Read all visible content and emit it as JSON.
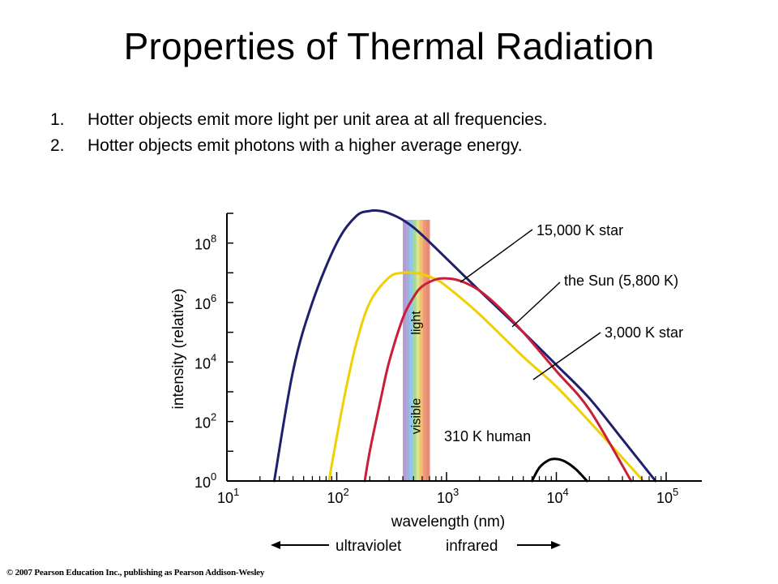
{
  "slide": {
    "title": "Properties of Thermal Radiation",
    "points": [
      {
        "number": "1.",
        "text": "Hotter objects emit more light per unit area at all frequencies."
      },
      {
        "number": "2.",
        "text": "Hotter objects emit photons with a higher average energy."
      }
    ],
    "copyright": "© 2007 Pearson Education Inc., publishing as Pearson Addison-Wesley"
  },
  "chart_data": {
    "type": "line",
    "xlabel": "wavelength (nm)",
    "ylabel": "intensity (relative)",
    "x_scale": "log",
    "y_scale": "log",
    "xlim": [
      10,
      100000
    ],
    "ylim": [
      1,
      1000000000
    ],
    "x_ticks": [
      {
        "value": 10,
        "base": "10",
        "exp": "1"
      },
      {
        "value": 100,
        "base": "10",
        "exp": "2"
      },
      {
        "value": 1000,
        "base": "10",
        "exp": "3"
      },
      {
        "value": 10000,
        "base": "10",
        "exp": "4"
      },
      {
        "value": 100000,
        "base": "10",
        "exp": "5"
      }
    ],
    "y_ticks": [
      {
        "value": 1,
        "base": "10",
        "exp": "0"
      },
      {
        "value": 100,
        "base": "10",
        "exp": "2"
      },
      {
        "value": 10000,
        "base": "10",
        "exp": "4"
      },
      {
        "value": 1000000,
        "base": "10",
        "exp": "6"
      },
      {
        "value": 100000000,
        "base": "10",
        "exp": "8"
      }
    ],
    "visible_band": {
      "label_lines": [
        "visible",
        "light"
      ],
      "range_nm": [
        400,
        700
      ]
    },
    "direction_labels": {
      "left": "ultraviolet",
      "right": "infrared"
    },
    "series": [
      {
        "name": "15,000 K star",
        "color": "#1f1f6e",
        "x": [
          27,
          40,
          60,
          100,
          150,
          200,
          250,
          300,
          400,
          550,
          1000,
          2000,
          5000,
          10000,
          20000,
          40000,
          80000
        ],
        "y": [
          1,
          5000,
          1000000.0,
          100000000.0,
          800000000.0,
          1200000000.0,
          1200000000.0,
          1000000000.0,
          600000000.0,
          250000000.0,
          30000000.0,
          2500000.0,
          100000.0,
          8000,
          600,
          25,
          1
        ]
      },
      {
        "name": "the Sun (5,800 K)",
        "color": "#f0d000",
        "x": [
          85,
          100,
          120,
          150,
          200,
          300,
          400,
          500,
          600,
          800,
          1000,
          2000,
          5000,
          10000,
          20000,
          40000,
          62000
        ],
        "y": [
          1,
          30,
          1000,
          40000,
          1000000.0,
          7000000.0,
          10000000.0,
          10000000.0,
          9000000.0,
          6000000.0,
          3500000.0,
          400000.0,
          15000,
          1500,
          100,
          6,
          1
        ]
      },
      {
        "name": "3,000 K star",
        "color": "#c81e3a",
        "x": [
          180,
          200,
          250,
          300,
          400,
          500,
          600,
          800,
          1000,
          1200,
          1500,
          2000,
          3000,
          5000,
          10000,
          20000,
          48000
        ],
        "y": [
          1,
          10,
          500,
          10000,
          300000.0,
          1500000.0,
          3500000.0,
          6000000.0,
          6500000.0,
          6000000.0,
          4500000.0,
          2500000.0,
          700000.0,
          100000.0,
          5000,
          250,
          1
        ]
      },
      {
        "name": "310 K human",
        "color": "#000000",
        "x": [
          6000,
          7000,
          8500,
          10000,
          12000,
          15000,
          19000
        ],
        "y": [
          1,
          2.8,
          5,
          5.5,
          4.5,
          2.5,
          1
        ]
      }
    ]
  }
}
